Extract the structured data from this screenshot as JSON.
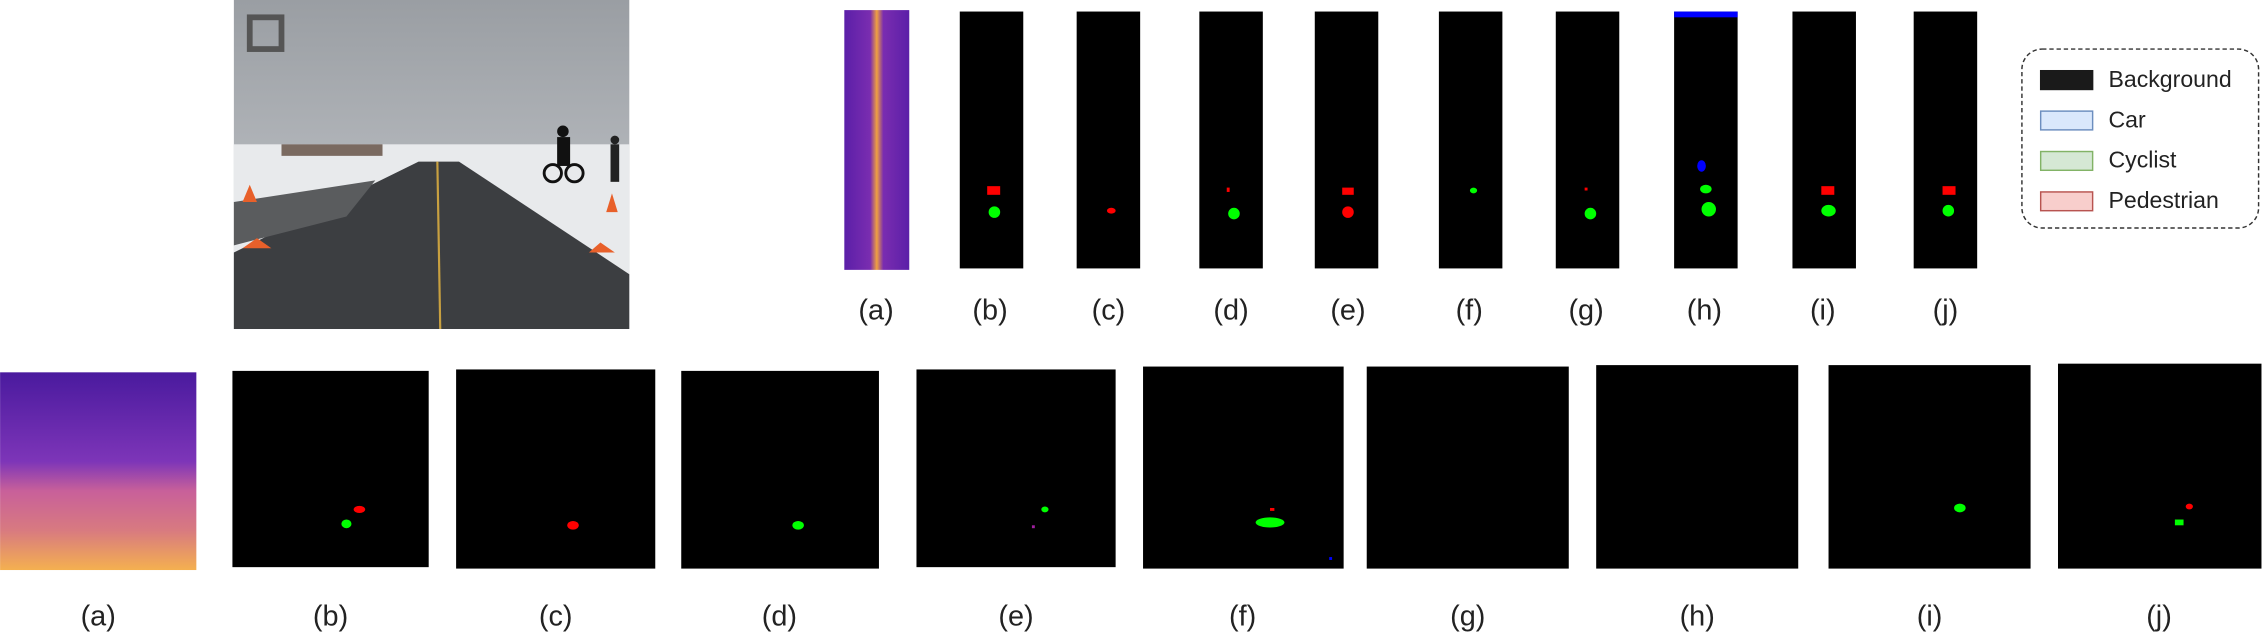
{
  "top_labels": [
    "(a)",
    "(b)",
    "(c)",
    "(d)",
    "(e)",
    "(f)",
    "(g)",
    "(h)",
    "(i)",
    "(j)"
  ],
  "bottom_labels": [
    "(a)",
    "(b)",
    "(c)",
    "(d)",
    "(e)",
    "(f)",
    "(g)",
    "(h)",
    "(i)",
    "(j)"
  ],
  "legend": [
    {
      "label": "Background",
      "color": "#1a1a1a",
      "border": "#1a1a1a"
    },
    {
      "label": "Car",
      "color": "#dae8fc",
      "border": "#6c8ebf"
    },
    {
      "label": "Cyclist",
      "color": "#d5e8d4",
      "border": "#82b366"
    },
    {
      "label": "Pedestrian",
      "color": "#f8cecc",
      "border": "#b85450"
    }
  ]
}
